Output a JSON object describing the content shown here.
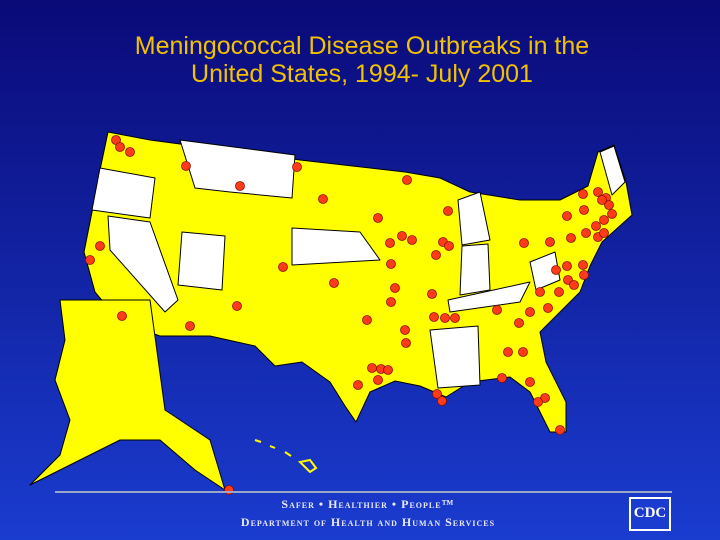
{
  "title": {
    "lines": [
      "Meningococcal Disease Outbreaks in the",
      "United States, 1994- July 2001"
    ]
  },
  "footer": {
    "slogan": "Safer • Healthier • People™",
    "department": "Department of Health and Human Services"
  },
  "logo": {
    "text": "CDC"
  }
}
